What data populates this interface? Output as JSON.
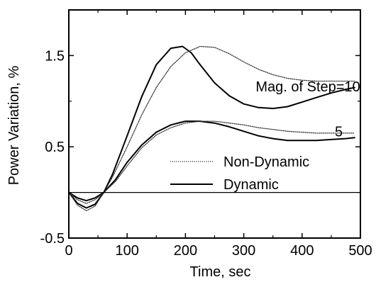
{
  "chart_data": {
    "type": "line",
    "title": "",
    "xlabel": "Time, sec",
    "ylabel": "Power Variation, %",
    "xlim": [
      0,
      500
    ],
    "ylim": [
      -0.5,
      2.0
    ],
    "x_ticks": [
      0,
      100,
      200,
      300,
      400,
      500
    ],
    "x_tick_labels": [
      "0",
      "100",
      "200",
      "300",
      "400",
      "500"
    ],
    "y_ticks": [
      -0.5,
      0.5,
      1.5
    ],
    "y_tick_labels": [
      "-0.5",
      "0.5",
      "1.5"
    ],
    "y_minor_ticks": [
      0.0,
      1.0
    ],
    "grid": false,
    "zero_line": true,
    "legend": {
      "placement": "lower-right",
      "entries": [
        {
          "label": "Non-Dynamic",
          "style": "dotted"
        },
        {
          "label": "Dynamic",
          "style": "solid"
        }
      ]
    },
    "annotations": [
      {
        "text": "Mag. of Step=10",
        "x": 410,
        "y": 1.16
      },
      {
        "text": "5",
        "x": 463,
        "y": 0.67
      }
    ],
    "series": [
      {
        "style": "solid",
        "group": "step-10",
        "x": [
          0,
          15,
          30,
          45,
          60,
          75,
          100,
          125,
          150,
          175,
          195,
          210,
          225,
          250,
          275,
          300,
          325,
          350,
          375,
          400,
          425,
          450,
          475,
          490
        ],
        "y": [
          0,
          -0.12,
          -0.17,
          -0.13,
          0.0,
          0.2,
          0.62,
          1.05,
          1.4,
          1.58,
          1.6,
          1.53,
          1.4,
          1.2,
          1.06,
          0.97,
          0.93,
          0.92,
          0.94,
          0.99,
          1.04,
          1.09,
          1.13,
          1.15
        ]
      },
      {
        "style": "dotted",
        "group": "step-10",
        "x": [
          0,
          15,
          30,
          45,
          60,
          75,
          100,
          125,
          150,
          175,
          200,
          225,
          250,
          275,
          300,
          325,
          350,
          375,
          400,
          425,
          450,
          475,
          490
        ],
        "y": [
          0,
          -0.14,
          -0.2,
          -0.15,
          0.0,
          0.17,
          0.5,
          0.85,
          1.15,
          1.38,
          1.53,
          1.6,
          1.59,
          1.52,
          1.43,
          1.35,
          1.29,
          1.25,
          1.23,
          1.22,
          1.22,
          1.22,
          1.22
        ]
      },
      {
        "style": "solid",
        "group": "step-5",
        "x": [
          0,
          15,
          30,
          45,
          60,
          80,
          100,
          125,
          150,
          175,
          200,
          225,
          250,
          275,
          300,
          325,
          350,
          375,
          400,
          425,
          450,
          475,
          490
        ],
        "y": [
          0,
          -0.06,
          -0.09,
          -0.06,
          0.0,
          0.14,
          0.33,
          0.52,
          0.66,
          0.74,
          0.78,
          0.78,
          0.76,
          0.72,
          0.67,
          0.62,
          0.59,
          0.57,
          0.57,
          0.57,
          0.58,
          0.59,
          0.6
        ]
      },
      {
        "style": "dotted",
        "group": "step-5",
        "x": [
          0,
          15,
          30,
          45,
          60,
          80,
          100,
          125,
          150,
          175,
          200,
          225,
          250,
          275,
          300,
          325,
          350,
          375,
          400,
          425,
          450,
          475,
          490
        ],
        "y": [
          0,
          -0.08,
          -0.12,
          -0.08,
          0.0,
          0.12,
          0.29,
          0.49,
          0.63,
          0.71,
          0.76,
          0.78,
          0.78,
          0.76,
          0.74,
          0.71,
          0.69,
          0.67,
          0.66,
          0.65,
          0.65,
          0.65,
          0.65
        ]
      }
    ]
  }
}
